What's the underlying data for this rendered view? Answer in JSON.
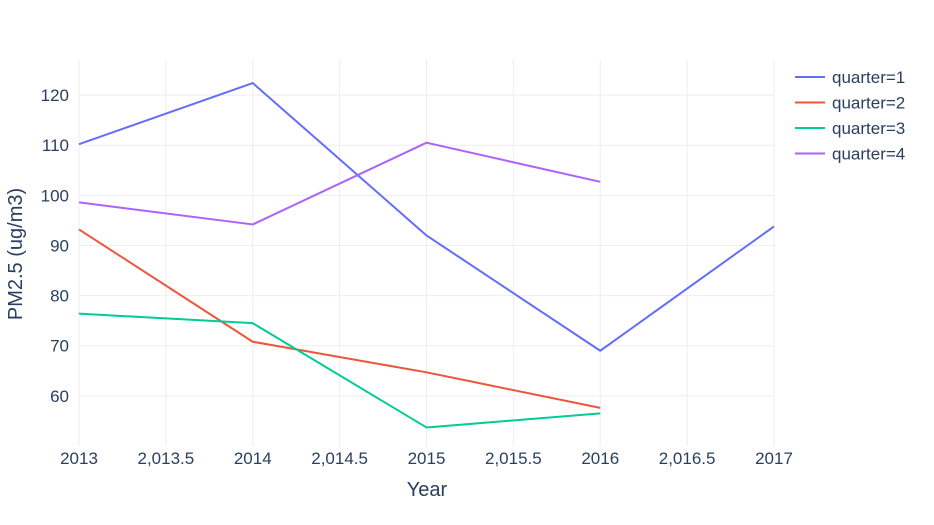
{
  "chart_data": {
    "type": "line",
    "xlabel": "Year",
    "ylabel": "PM2.5 (ug/m3)",
    "xlim": [
      2013,
      2017
    ],
    "ylim": [
      50,
      127
    ],
    "x_ticks": [
      2013,
      2013.5,
      2014,
      2014.5,
      2015,
      2015.5,
      2016,
      2016.5,
      2017
    ],
    "x_tick_labels": [
      "2013",
      "2,013.5",
      "2014",
      "2,014.5",
      "2015",
      "2,015.5",
      "2016",
      "2,016.5",
      "2017"
    ],
    "y_ticks": [
      60,
      70,
      80,
      90,
      100,
      110,
      120
    ],
    "y_tick_labels": [
      "60",
      "70",
      "80",
      "90",
      "100",
      "110",
      "120"
    ],
    "grid": true,
    "legend_position": "top-right",
    "series": [
      {
        "name": "quarter=1",
        "color": "#636efa",
        "x": [
          2013,
          2014,
          2015,
          2016,
          2017
        ],
        "values": [
          110.2,
          122.4,
          92.0,
          69.0,
          93.8
        ]
      },
      {
        "name": "quarter=2",
        "color": "#ef553b",
        "x": [
          2013,
          2014,
          2015,
          2016
        ],
        "values": [
          93.2,
          70.8,
          64.7,
          57.6
        ]
      },
      {
        "name": "quarter=3",
        "color": "#00cc96",
        "x": [
          2013,
          2014,
          2015,
          2016
        ],
        "values": [
          76.4,
          74.5,
          53.7,
          56.5
        ]
      },
      {
        "name": "quarter=4",
        "color": "#ab63fa",
        "x": [
          2013,
          2014,
          2015,
          2016
        ],
        "values": [
          98.6,
          94.2,
          110.5,
          102.7
        ]
      }
    ]
  }
}
